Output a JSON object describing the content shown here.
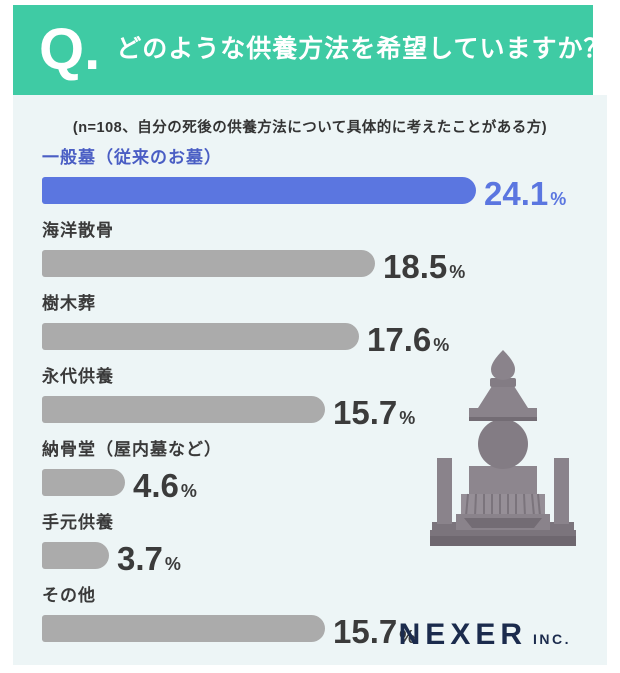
{
  "header": {
    "q_label": "Q.",
    "title": "どのような供養方法を希望していますか？"
  },
  "subtitle": "(n=108、自分の死後の供養方法について具体的に考えたことがある方)",
  "chart_data": {
    "type": "bar",
    "orientation": "horizontal",
    "unit": "%",
    "categories": [
      "一般墓（従来のお墓）",
      "海洋散骨",
      "樹木葬",
      "永代供養",
      "納骨堂（屋内墓など）",
      "手元供養",
      "その他"
    ],
    "values": [
      24.1,
      18.5,
      17.6,
      15.7,
      4.6,
      3.7,
      15.7
    ],
    "highlight_index": 0,
    "xlim": [
      0,
      25
    ],
    "legend": "none",
    "grid": false
  },
  "illustration": "japanese-gravestone",
  "footer": {
    "logo_text": "NEXER",
    "logo_suffix": "INC."
  },
  "colors": {
    "header_bg": "#3FCBA4",
    "panel_bg": "#EDF5F6",
    "highlight": "#5B76E0",
    "highlight_label": "#4A5EC4",
    "bar_gray": "#ABABAB",
    "label_dark": "#3A3A3A",
    "logo_navy": "#1B2B4D"
  }
}
